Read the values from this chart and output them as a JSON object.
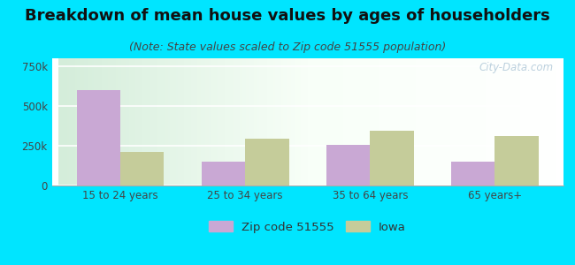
{
  "title": "Breakdown of mean house values by ages of householders",
  "subtitle": "(Note: State values scaled to Zip code 51555 population)",
  "categories": [
    "15 to 24 years",
    "25 to 34 years",
    "35 to 64 years",
    "65 years+"
  ],
  "zip_values": [
    600000,
    150000,
    255000,
    150000
  ],
  "iowa_values": [
    210000,
    295000,
    345000,
    310000
  ],
  "zip_color": "#c9a8d4",
  "iowa_color": "#c5cc9a",
  "background_outer": "#00e5ff",
  "ylim": [
    0,
    800000
  ],
  "yticks": [
    0,
    250000,
    500000,
    750000
  ],
  "ytick_labels": [
    "0",
    "250k",
    "500k",
    "750k"
  ],
  "legend_zip_label": "Zip code 51555",
  "legend_iowa_label": "Iowa",
  "title_fontsize": 13,
  "subtitle_fontsize": 9,
  "bar_width": 0.35,
  "watermark": "City-Data.com"
}
